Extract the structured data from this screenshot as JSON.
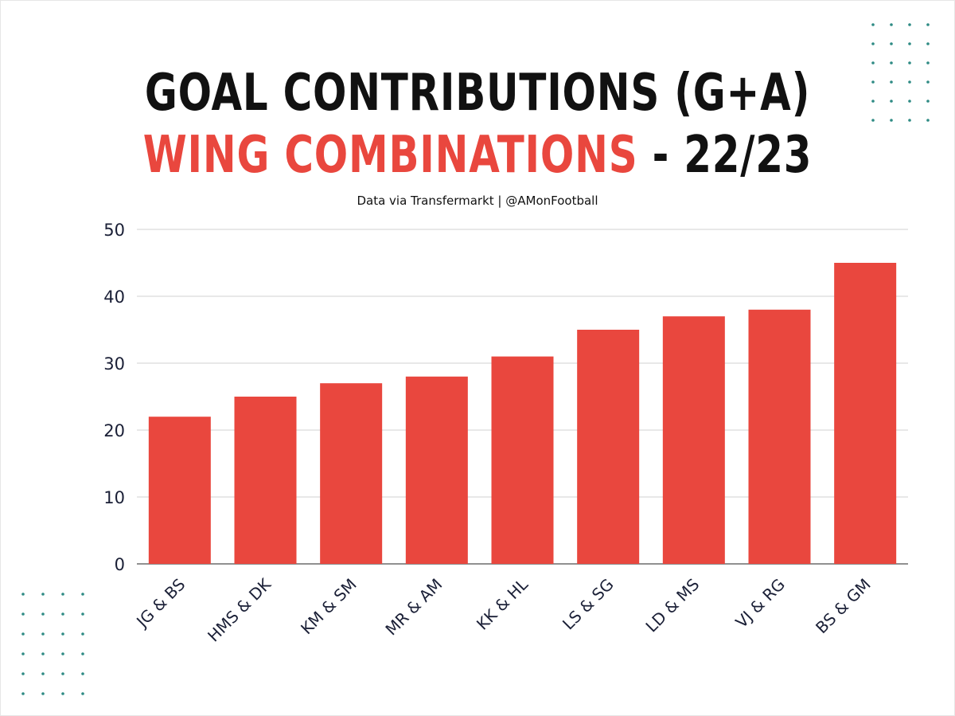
{
  "title": {
    "line1": "GOAL CONTRIBUTIONS (G+A)",
    "line2_red": "WING COMBINATIONS",
    "line2_black": " - 22/23"
  },
  "subtitle": "Data via Transfermarkt | @AMonFootball",
  "colors": {
    "bar": "#e9473e",
    "title_accent": "#e9473e",
    "dots": "#2e8b84",
    "grid": "#d0d0d0",
    "text": "#1a1f36"
  },
  "chart_data": {
    "type": "bar",
    "categories": [
      "JG & BS",
      "HMS & DK",
      "KM & SM",
      "MR & AM",
      "KK & HL",
      "LS & SG",
      "LD & MS",
      "VJ & RG",
      "BS & GM"
    ],
    "values": [
      22,
      25,
      27,
      28,
      31,
      35,
      37,
      38,
      45
    ],
    "title": "GOAL CONTRIBUTIONS (G+A) WING COMBINATIONS - 22/23",
    "xlabel": "",
    "ylabel": "",
    "ylim": [
      0,
      50
    ],
    "yticks": [
      0,
      10,
      20,
      30,
      40,
      50
    ],
    "grid": true,
    "legend": "none"
  }
}
